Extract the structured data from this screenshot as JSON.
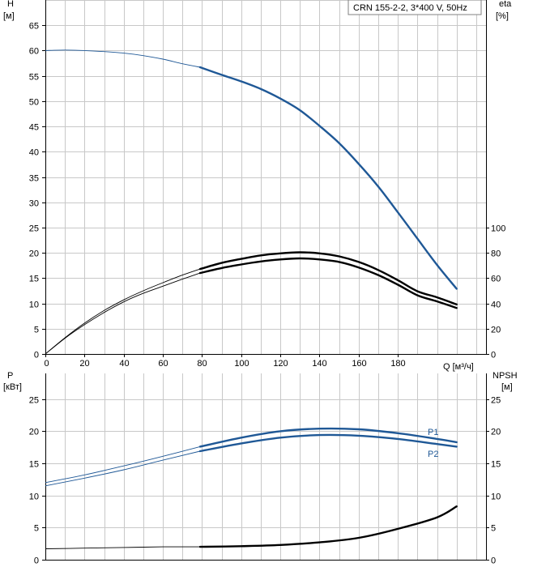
{
  "chart_data": [
    {
      "type": "line",
      "title": "CRN 155-2-2, 3*400 V, 50Hz",
      "xlabel": "Q [м³/ч]",
      "x_ticks": [
        0,
        20,
        40,
        60,
        80,
        100,
        120,
        140,
        160,
        180
      ],
      "xlim": [
        0,
        225
      ],
      "ylabel_left": "H",
      "ylabel_left_unit": "[м]",
      "ylim_left": [
        0,
        70
      ],
      "yticks_left": [
        0,
        5,
        10,
        15,
        20,
        25,
        30,
        35,
        40,
        45,
        50,
        55,
        60,
        65
      ],
      "ylabel_right": "eta",
      "ylabel_right_unit": "[%]",
      "ylim_right": [
        0,
        280
      ],
      "yticks_right": [
        0,
        20,
        40,
        60,
        80,
        100
      ],
      "grid": true,
      "series": [
        {
          "name": "H",
          "axis": "left",
          "color": "#1f5896",
          "thin": [
            [
              0,
              60
            ],
            [
              10,
              60.1
            ],
            [
              20,
              60
            ],
            [
              30,
              59.8
            ],
            [
              40,
              59.5
            ],
            [
              50,
              59
            ],
            [
              60,
              58.3
            ],
            [
              70,
              57.4
            ],
            [
              79,
              56.7
            ]
          ],
          "bold": [
            [
              79,
              56.7
            ],
            [
              90,
              55.2
            ],
            [
              100,
              53.9
            ],
            [
              110,
              52.4
            ],
            [
              120,
              50.5
            ],
            [
              130,
              48.2
            ],
            [
              140,
              45.1
            ],
            [
              150,
              41.7
            ],
            [
              160,
              37.6
            ],
            [
              170,
              33.1
            ],
            [
              180,
              28
            ],
            [
              190,
              22.8
            ],
            [
              200,
              17.6
            ],
            [
              210,
              12.9
            ]
          ]
        },
        {
          "name": "eta",
          "axis": "left",
          "color": "#000000",
          "thin": [
            [
              0,
              0
            ],
            [
              10,
              3.1
            ],
            [
              20,
              5.8
            ],
            [
              30,
              8.2
            ],
            [
              40,
              10.3
            ],
            [
              50,
              12
            ],
            [
              60,
              13.4
            ],
            [
              70,
              14.8
            ],
            [
              79,
              16
            ]
          ],
          "bold": [
            [
              79,
              16
            ],
            [
              90,
              17
            ],
            [
              100,
              17.7
            ],
            [
              110,
              18.3
            ],
            [
              120,
              18.7
            ],
            [
              130,
              18.9
            ],
            [
              140,
              18.7
            ],
            [
              150,
              18.2
            ],
            [
              160,
              17.1
            ],
            [
              170,
              15.6
            ],
            [
              180,
              13.7
            ],
            [
              190,
              11.6
            ],
            [
              200,
              10.4
            ],
            [
              210,
              9.1
            ]
          ]
        },
        {
          "name": "eta-upper",
          "axis": "left",
          "color": "#000000",
          "thin": [
            [
              0,
              0
            ],
            [
              10,
              3.2
            ],
            [
              20,
              6.1
            ],
            [
              30,
              8.6
            ],
            [
              40,
              10.7
            ],
            [
              50,
              12.5
            ],
            [
              60,
              14.1
            ],
            [
              70,
              15.6
            ],
            [
              79,
              16.8
            ]
          ],
          "bold": [
            [
              79,
              16.8
            ],
            [
              90,
              18
            ],
            [
              100,
              18.8
            ],
            [
              110,
              19.5
            ],
            [
              120,
              19.9
            ],
            [
              130,
              20.1
            ],
            [
              140,
              19.9
            ],
            [
              150,
              19.3
            ],
            [
              160,
              18.2
            ],
            [
              170,
              16.6
            ],
            [
              180,
              14.6
            ],
            [
              190,
              12.4
            ],
            [
              200,
              11.2
            ],
            [
              210,
              9.8
            ]
          ]
        }
      ]
    },
    {
      "type": "line",
      "xlim": [
        0,
        225
      ],
      "ylabel_left": "P",
      "ylabel_left_unit": "[кВт]",
      "ylim_left": [
        0,
        29
      ],
      "yticks_left": [
        0,
        5,
        10,
        15,
        20,
        25
      ],
      "ylabel_right": "NPSH",
      "ylabel_right_unit": "[м]",
      "ylim_right": [
        0,
        29
      ],
      "yticks_right": [
        0,
        5,
        10,
        15,
        20,
        25
      ],
      "grid": true,
      "series": [
        {
          "name": "P1",
          "label": "P1",
          "color": "#1f5896",
          "thin": [
            [
              0,
              12
            ],
            [
              20,
              13.2
            ],
            [
              40,
              14.6
            ],
            [
              60,
              16.1
            ],
            [
              79,
              17.6
            ]
          ],
          "bold": [
            [
              79,
              17.6
            ],
            [
              100,
              19
            ],
            [
              120,
              20
            ],
            [
              140,
              20.4
            ],
            [
              160,
              20.3
            ],
            [
              180,
              19.7
            ],
            [
              200,
              18.8
            ],
            [
              210,
              18.3
            ]
          ]
        },
        {
          "name": "P2",
          "label": "P2",
          "color": "#1f5896",
          "thin": [
            [
              0,
              11.5
            ],
            [
              20,
              12.7
            ],
            [
              40,
              14
            ],
            [
              60,
              15.5
            ],
            [
              79,
              16.9
            ]
          ],
          "bold": [
            [
              79,
              16.9
            ],
            [
              100,
              18.1
            ],
            [
              120,
              19
            ],
            [
              140,
              19.4
            ],
            [
              160,
              19.3
            ],
            [
              180,
              18.8
            ],
            [
              200,
              18
            ],
            [
              210,
              17.6
            ]
          ]
        },
        {
          "name": "NPSH",
          "axis": "right",
          "color": "#000000",
          "thin": [
            [
              0,
              1.7
            ],
            [
              20,
              1.8
            ],
            [
              40,
              1.9
            ],
            [
              60,
              2
            ],
            [
              79,
              2
            ]
          ],
          "bold": [
            [
              79,
              2
            ],
            [
              100,
              2.1
            ],
            [
              120,
              2.3
            ],
            [
              140,
              2.7
            ],
            [
              160,
              3.4
            ],
            [
              180,
              4.8
            ],
            [
              200,
              6.6
            ],
            [
              210,
              8.3
            ]
          ]
        }
      ]
    }
  ]
}
